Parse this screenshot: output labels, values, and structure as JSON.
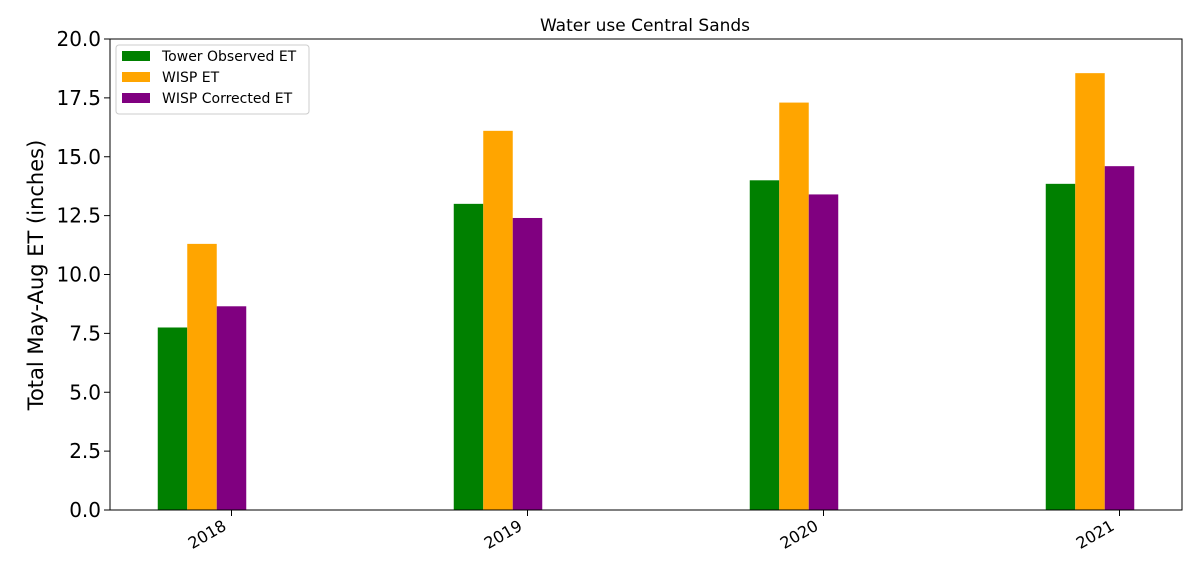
{
  "chart_data": {
    "type": "bar",
    "title": "Water use Central Sands",
    "xlabel": "",
    "ylabel": "Total May-Aug ET (inches)",
    "categories": [
      "2018",
      "2019",
      "2020",
      "2021"
    ],
    "series": [
      {
        "name": "Tower Observed ET",
        "color": "#008000",
        "values": [
          7.75,
          13.0,
          14.0,
          13.85
        ]
      },
      {
        "name": "WISP ET",
        "color": "#FFA500",
        "values": [
          11.3,
          16.1,
          17.3,
          18.55
        ]
      },
      {
        "name": "WISP Corrected ET",
        "color": "#800080",
        "values": [
          8.65,
          12.4,
          13.4,
          14.6
        ]
      }
    ],
    "ylim": [
      0,
      20
    ],
    "yticks": [
      "0.0",
      "2.5",
      "5.0",
      "7.5",
      "10.0",
      "12.5",
      "15.0",
      "17.5",
      "20.0"
    ],
    "grid": false,
    "legend_position": "top-left"
  }
}
